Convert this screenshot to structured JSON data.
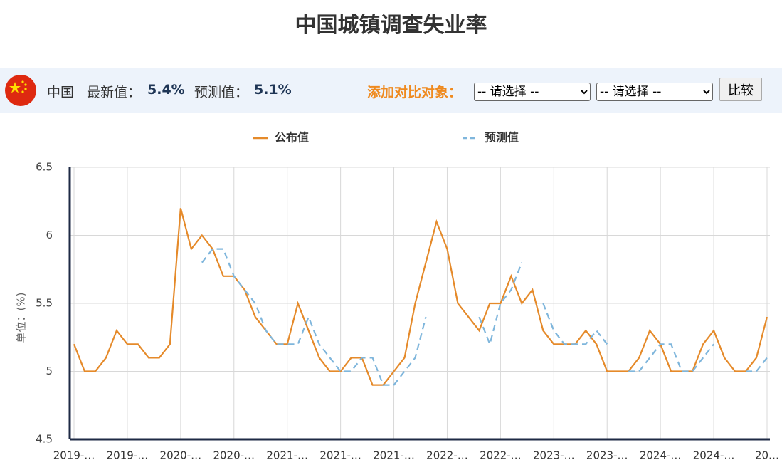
{
  "title": "中国城镇调查失业率",
  "info_bar": {
    "country": "中国",
    "latest_label": "最新值：",
    "latest_value": "5.4%",
    "forecast_label": "预测值：",
    "forecast_value": "5.1%",
    "compare_label": "添加对比对象：",
    "select_1": "-- 请选择 --",
    "select_2": "-- 请选择 --",
    "button": "比较"
  },
  "chart_data": {
    "type": "line",
    "y_label": "单位：(%)",
    "categories": [
      "2019-…",
      null,
      null,
      null,
      null,
      "2019-…",
      null,
      null,
      null,
      null,
      "2020-…",
      null,
      null,
      null,
      null,
      "2020-…",
      null,
      null,
      null,
      null,
      "2021-…",
      null,
      null,
      null,
      null,
      "2021-…",
      null,
      null,
      null,
      null,
      "2021-…",
      null,
      null,
      null,
      null,
      "2022-…",
      null,
      null,
      null,
      null,
      "2022-…",
      null,
      null,
      null,
      null,
      "2023-…",
      null,
      null,
      null,
      null,
      "2023-…",
      null,
      null,
      null,
      null,
      "2024-…",
      null,
      null,
      null,
      null,
      "2024-…",
      null,
      null,
      null,
      null,
      "20…"
    ],
    "series": [
      {
        "name": "公布值",
        "color": "#e58a2a",
        "line_style": "solid",
        "values": [
          5.2,
          5.0,
          5.0,
          5.1,
          5.3,
          5.2,
          5.2,
          5.1,
          5.1,
          5.2,
          6.2,
          5.9,
          6.0,
          5.9,
          5.7,
          5.7,
          5.6,
          5.4,
          5.3,
          5.2,
          5.2,
          5.5,
          5.3,
          5.1,
          5.0,
          5.0,
          5.1,
          5.1,
          4.9,
          4.9,
          5.0,
          5.1,
          5.5,
          5.8,
          6.1,
          5.9,
          5.5,
          5.4,
          5.3,
          5.5,
          5.5,
          5.7,
          5.5,
          5.6,
          5.3,
          5.2,
          5.2,
          5.2,
          5.3,
          5.2,
          5.0,
          5.0,
          5.0,
          5.1,
          5.3,
          5.2,
          5.0,
          5.0,
          5.0,
          5.2,
          5.3,
          5.1,
          5.0,
          5.0,
          5.1,
          5.4
        ]
      },
      {
        "name": "预测值",
        "color": "#7fb6dc",
        "line_style": "dashed",
        "values": [
          null,
          null,
          null,
          null,
          null,
          null,
          null,
          null,
          null,
          null,
          null,
          null,
          5.8,
          5.9,
          5.9,
          5.7,
          5.6,
          5.5,
          5.3,
          5.2,
          5.2,
          5.2,
          5.4,
          5.2,
          5.1,
          5.0,
          5.0,
          5.1,
          5.1,
          4.9,
          4.9,
          5.0,
          5.1,
          5.4,
          null,
          null,
          null,
          null,
          5.4,
          5.2,
          5.5,
          5.6,
          5.8,
          null,
          5.5,
          5.3,
          5.2,
          5.2,
          5.2,
          5.3,
          5.2,
          null,
          5.0,
          5.0,
          5.1,
          5.2,
          5.2,
          5.0,
          5.0,
          5.1,
          5.2,
          null,
          null,
          5.0,
          5.0,
          5.1
        ]
      }
    ],
    "ylim": [
      4.5,
      6.5
    ],
    "yticks": [
      4.5,
      5,
      5.5,
      6,
      6.5
    ],
    "grid": true,
    "legend": "top"
  }
}
